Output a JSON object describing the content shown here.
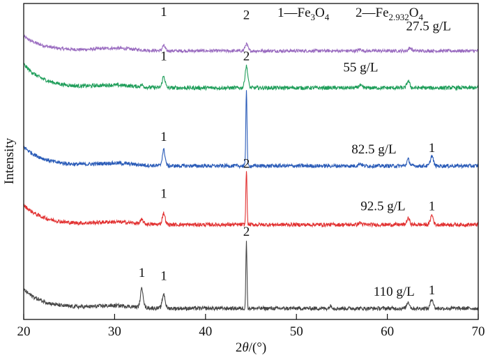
{
  "chart_data": {
    "type": "line",
    "title": "",
    "xlabel": "2θ/(°)",
    "xlabel_parts": {
      "prefix": "2",
      "theta": "θ",
      "suffix": "/(°)"
    },
    "ylabel": "Intensity",
    "xlim": [
      20,
      70
    ],
    "ylim": [
      0,
      100
    ],
    "xticks": [
      20,
      30,
      40,
      50,
      60,
      70
    ],
    "grid": false,
    "legend": {
      "placement": "top-right",
      "entries": [
        {
          "num": "1",
          "dash": "—",
          "base": "Fe",
          "sub": "3",
          "o": "O",
          "sub2": "4"
        },
        {
          "num": "2",
          "dash": "—",
          "base": "Fe",
          "sub": "2.932",
          "o": "O",
          "sub2": "4"
        }
      ]
    },
    "series": [
      {
        "name": "27.5 g/L",
        "color": "#9a6cc0",
        "start": 89.6,
        "end": 85.0,
        "noise": 0.5,
        "peaks": [
          [
            35.4,
            1.6
          ],
          [
            44.5,
            2.2
          ],
          [
            62.5,
            1.0
          ],
          [
            57.0,
            0.5
          ]
        ],
        "label_pos": [
          67.0,
          91.5
        ],
        "peak_labels": [
          {
            "text": "1",
            "x": 35.4,
            "y": 96
          },
          {
            "text": "2",
            "x": 44.5,
            "y": 95
          }
        ]
      },
      {
        "name": "55 g/L",
        "color": "#1f9e5a",
        "start": 80.8,
        "end": 73.3,
        "noise": 0.6,
        "peaks": [
          [
            35.4,
            3.6
          ],
          [
            44.5,
            6.8
          ],
          [
            62.3,
            2.2
          ],
          [
            57.0,
            0.8
          ],
          [
            33.0,
            0.6
          ]
        ],
        "label_pos": [
          59.0,
          78.5
        ],
        "peak_labels": [
          {
            "text": "1",
            "x": 35.4,
            "y": 82
          },
          {
            "text": "2",
            "x": 44.5,
            "y": 82
          }
        ]
      },
      {
        "name": "82.5 g/L",
        "color": "#2b5cb8",
        "start": 54.7,
        "end": 48.6,
        "noise": 0.6,
        "peaks": [
          [
            35.4,
            5.0
          ],
          [
            44.5,
            24.5
          ],
          [
            62.3,
            2.0
          ],
          [
            64.9,
            3.2
          ],
          [
            57.0,
            0.8
          ]
        ],
        "label_pos": [
          61.0,
          52.5
        ],
        "peak_labels": [
          {
            "text": "1",
            "x": 35.4,
            "y": 56.5
          },
          {
            "text": "1",
            "x": 64.9,
            "y": 53
          }
        ]
      },
      {
        "name": "92.5 g/L",
        "color": "#e23232",
        "start": 36.2,
        "end": 30.0,
        "noise": 0.6,
        "peaks": [
          [
            33.0,
            1.2
          ],
          [
            35.4,
            3.6
          ],
          [
            44.5,
            17.5
          ],
          [
            62.3,
            2.0
          ],
          [
            64.9,
            3.0
          ],
          [
            57.0,
            0.6
          ]
        ],
        "label_pos": [
          62.0,
          34.5
        ],
        "peak_labels": [
          {
            "text": "1",
            "x": 35.4,
            "y": 38.5
          },
          {
            "text": "2",
            "x": 44.5,
            "y": 48
          },
          {
            "text": "1",
            "x": 64.9,
            "y": 34.5
          }
        ]
      },
      {
        "name": "110 g/L",
        "color": "#454545",
        "start": 9.5,
        "end": 3.5,
        "noise": 0.6,
        "peaks": [
          [
            33.0,
            6.0
          ],
          [
            35.4,
            4.5
          ],
          [
            44.5,
            21.0
          ],
          [
            62.3,
            2.0
          ],
          [
            64.9,
            3.0
          ],
          [
            53.8,
            0.8
          ]
        ],
        "label_pos": [
          63.0,
          7.5
        ],
        "peak_labels": [
          {
            "text": "1",
            "x": 33.0,
            "y": 13.5
          },
          {
            "text": "1",
            "x": 35.4,
            "y": 12.5
          },
          {
            "text": "2",
            "x": 44.5,
            "y": 26.5
          },
          {
            "text": "1",
            "x": 64.9,
            "y": 8
          }
        ]
      }
    ]
  }
}
